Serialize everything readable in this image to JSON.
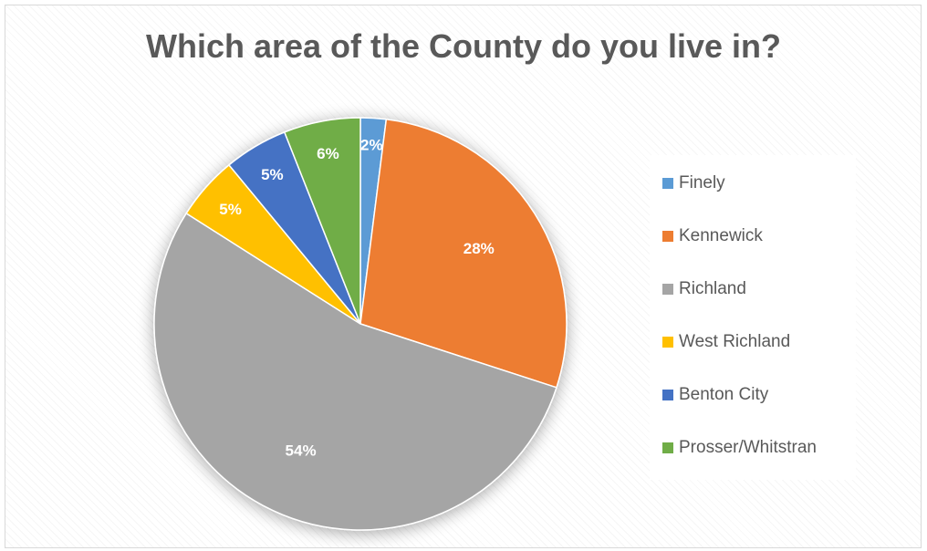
{
  "chart_data": {
    "type": "pie",
    "title": "Which area of the County do you live in?",
    "categories": [
      "Finely",
      "Kennewick",
      "Richland",
      "West Richland",
      "Benton City",
      "Prosser/Whitstran"
    ],
    "values": [
      2,
      28,
      54,
      5,
      5,
      6
    ],
    "labels": [
      "2%",
      "28%",
      "54%",
      "5%",
      "5%",
      "6%"
    ],
    "colors": [
      "#5B9BD5",
      "#ED7D31",
      "#A5A5A5",
      "#FFC000",
      "#4472C4",
      "#70AD47"
    ],
    "legend": "right",
    "start_angle": "top, clockwise"
  }
}
